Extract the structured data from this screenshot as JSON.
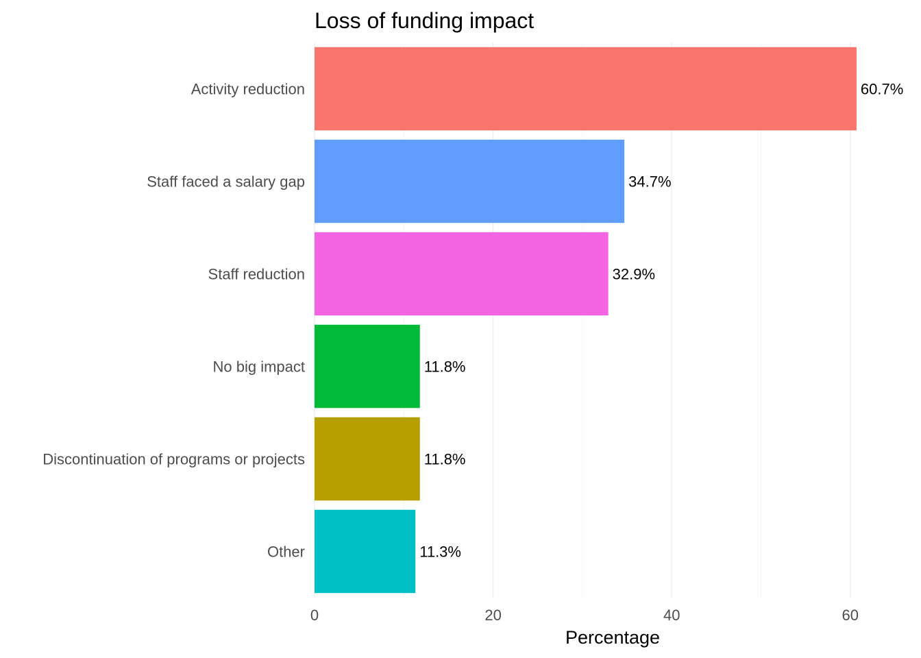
{
  "chart_data": {
    "type": "bar",
    "orientation": "horizontal",
    "title": "Loss of funding impact",
    "xlabel": "Percentage",
    "ylabel": "",
    "xlim": [
      0,
      63
    ],
    "x_ticks": [
      0,
      20,
      40,
      60
    ],
    "x_tick_labels": [
      "0",
      "20",
      "40",
      "60"
    ],
    "grid": true,
    "legend": "none",
    "categories": [
      "Activity reduction",
      "Staff faced a salary gap",
      "Staff reduction",
      "No big impact",
      "Discontinuation of programs or projects",
      "Other"
    ],
    "values": [
      60.7,
      34.7,
      32.9,
      11.8,
      11.8,
      11.3
    ],
    "data_labels": [
      "60.7%",
      "34.7%",
      "32.9%",
      "11.8%",
      "11.8%",
      "11.3%"
    ],
    "colors": [
      "#F8766D",
      "#619CFF",
      "#F564E3",
      "#00BA38",
      "#B79F00",
      "#00BFC4"
    ]
  }
}
